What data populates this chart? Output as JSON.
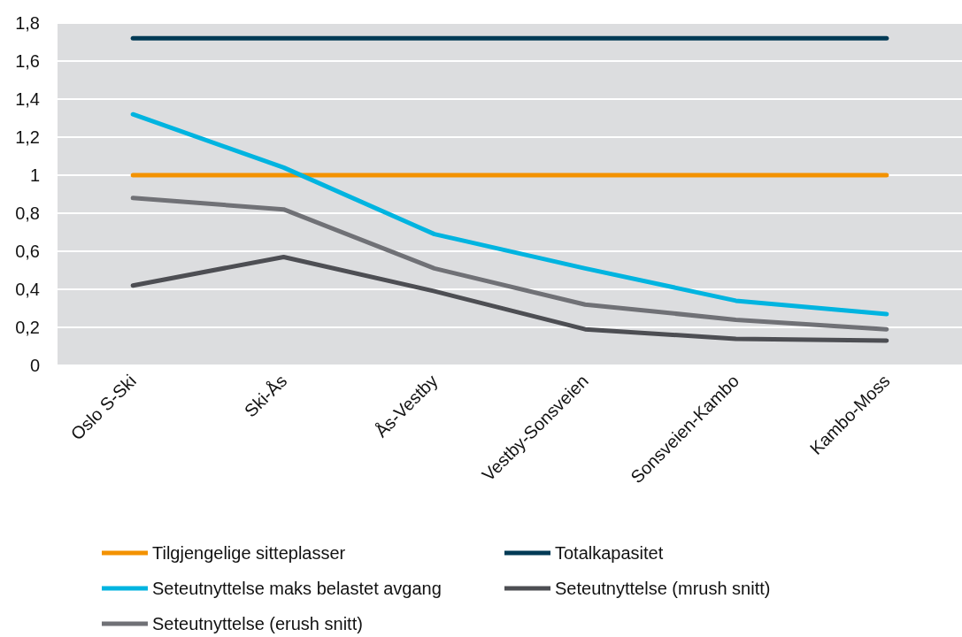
{
  "chart_data": {
    "type": "line",
    "categories": [
      "Oslo S-Ski",
      "Ski-Ås",
      "Ås-Vestby",
      "Vestby-Sonsveien",
      "Sonsveien-Kambo",
      "Kambo-Moss"
    ],
    "series": [
      {
        "name": "Tilgjengelige sitteplasser",
        "color": "#f39200",
        "values": [
          1,
          1,
          1,
          1,
          1,
          1
        ]
      },
      {
        "name": "Totalkapasitet",
        "color": "#003a55",
        "values": [
          1.72,
          1.72,
          1.72,
          1.72,
          1.72,
          1.72
        ]
      },
      {
        "name": "Seteutnyttelse maks belastet avgang",
        "color": "#00b4e0",
        "values": [
          1.32,
          1.04,
          0.69,
          0.51,
          0.34,
          0.27
        ]
      },
      {
        "name": "Seteutnyttelse (mrush snitt)",
        "color": "#4d4e53",
        "values": [
          0.42,
          0.57,
          0.39,
          0.19,
          0.14,
          0.13
        ]
      },
      {
        "name": "Seteutnyttelse (erush snitt)",
        "color": "#707176",
        "values": [
          0.88,
          0.82,
          0.51,
          0.32,
          0.24,
          0.19
        ]
      }
    ],
    "ylim": [
      0,
      1.8
    ],
    "yticks": [
      0,
      {
        "value": 0.2,
        "label": "0,2"
      },
      {
        "value": 0.4,
        "label": "0,4"
      },
      {
        "value": 0.6,
        "label": "0,6"
      },
      {
        "value": 0.8,
        "label": "0,8"
      },
      1,
      {
        "value": 1.2,
        "label": "1,2"
      },
      {
        "value": 1.4,
        "label": "1,4"
      },
      {
        "value": 1.6,
        "label": "1,6"
      },
      {
        "value": 1.8,
        "label": "1,8"
      }
    ],
    "grid": "y",
    "legend": "bottom",
    "marker": "none",
    "line_style": "solid"
  }
}
